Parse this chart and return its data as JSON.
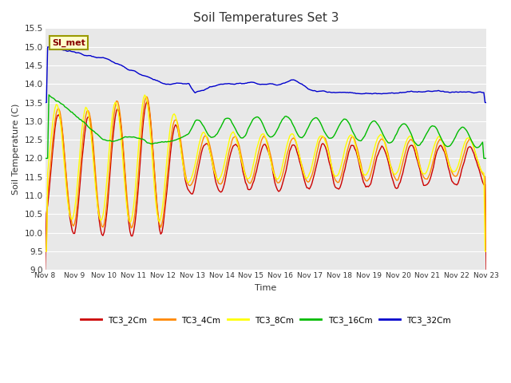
{
  "title": "Soil Temperatures Set 3",
  "xlabel": "Time",
  "ylabel": "Soil Temperature (C)",
  "ylim": [
    9.0,
    15.5
  ],
  "background_color": "#e8e8e8",
  "series_colors": {
    "TC3_2Cm": "#cc0000",
    "TC3_4Cm": "#ff8800",
    "TC3_8Cm": "#ffff00",
    "TC3_16Cm": "#00bb00",
    "TC3_32Cm": "#0000cc"
  },
  "x_tick_labels": [
    "Nov 8",
    "Nov 9",
    "Nov 10",
    "Nov 11",
    "Nov 12",
    "Nov 13",
    "Nov 14",
    "Nov 15",
    "Nov 16",
    "Nov 17",
    "Nov 18",
    "Nov 19",
    "Nov 20",
    "Nov 21",
    "Nov 22",
    "Nov 23"
  ],
  "annotation_text": "SI_met",
  "annotation_bg": "#ffffcc",
  "annotation_border": "#999900"
}
